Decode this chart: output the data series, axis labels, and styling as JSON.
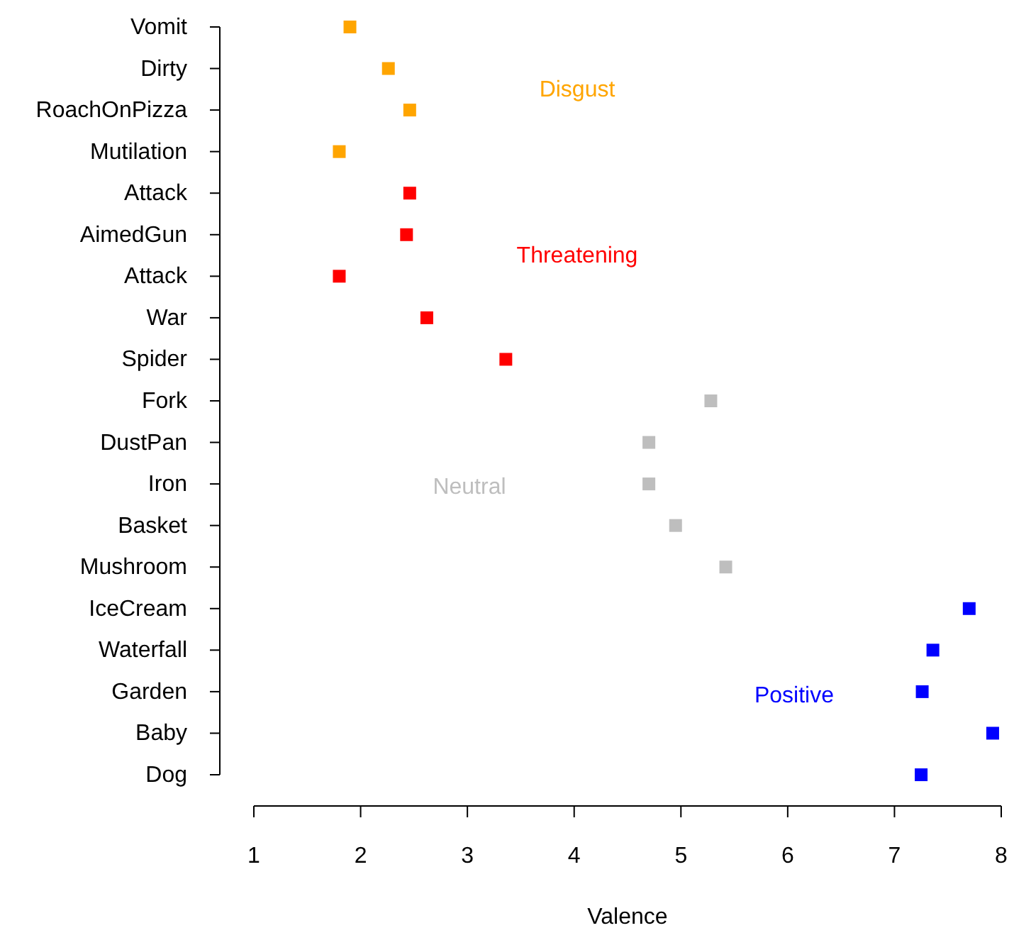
{
  "chart_data": {
    "type": "scatter",
    "orientation": "horizontal",
    "xlabel": "Valence",
    "categories": [
      "Vomit",
      "Dirty",
      "RoachOnPizza",
      "Mutilation",
      "Attack",
      "AimedGun",
      "Attack",
      "War",
      "Spider",
      "Fork",
      "DustPan",
      "Iron",
      "Basket",
      "Mushroom",
      "IceCream",
      "Waterfall",
      "Garden",
      "Baby",
      "Dog"
    ],
    "values": [
      1.9,
      2.26,
      2.46,
      1.8,
      2.46,
      2.43,
      1.8,
      2.62,
      3.36,
      5.28,
      4.7,
      4.7,
      4.95,
      5.42,
      7.7,
      7.36,
      7.26,
      7.92,
      7.25
    ],
    "colors": [
      "#ffa500",
      "#ffa500",
      "#ffa500",
      "#ffa500",
      "#ff0000",
      "#ff0000",
      "#ff0000",
      "#ff0000",
      "#ff0000",
      "#bebebe",
      "#bebebe",
      "#bebebe",
      "#bebebe",
      "#bebebe",
      "#0000ff",
      "#0000ff",
      "#0000ff",
      "#0000ff",
      "#0000ff"
    ],
    "xlim": [
      1,
      8
    ],
    "xticks": [
      1,
      2,
      3,
      4,
      5,
      6,
      7,
      8
    ],
    "marker": "square",
    "grid": false,
    "annotations": [
      "Disgust",
      "Threatening",
      "Neutral",
      "Positive"
    ]
  }
}
